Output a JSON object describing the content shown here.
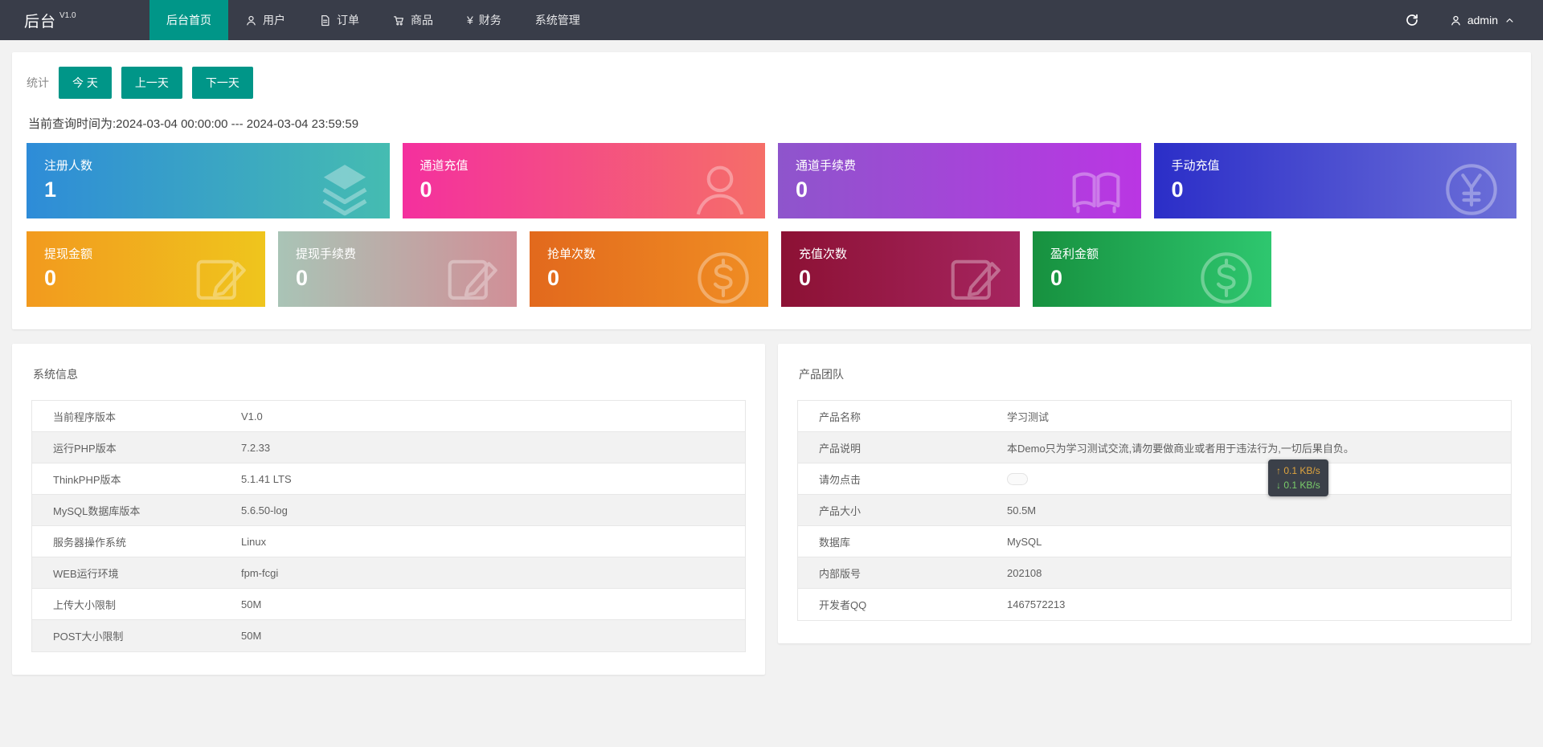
{
  "navbar": {
    "logo": "后台",
    "version": "V1.0",
    "items": [
      {
        "id": "home",
        "label": "后台首页",
        "icon": null,
        "active": true
      },
      {
        "id": "users",
        "label": "用户",
        "icon": "person-icon",
        "active": false
      },
      {
        "id": "orders",
        "label": "订单",
        "icon": "file-icon",
        "active": false
      },
      {
        "id": "goods",
        "label": "商品",
        "icon": "cart-icon",
        "active": false
      },
      {
        "id": "finance",
        "label": "财务",
        "icon": "yen-icon",
        "active": false
      },
      {
        "id": "system",
        "label": "系统管理",
        "icon": null,
        "active": false
      }
    ],
    "user": {
      "name": "admin"
    }
  },
  "stats": {
    "label": "统计",
    "buttons": [
      {
        "id": "today",
        "label": "今 天"
      },
      {
        "id": "prev-day",
        "label": "上一天"
      },
      {
        "id": "next-day",
        "label": "下一天"
      }
    ],
    "query_time": "当前查询时间为:2024-03-04 00:00:00 --- 2024-03-04 23:59:59",
    "cards_row1": [
      {
        "id": "registered-users",
        "label": "注册人数",
        "value": "1",
        "icon": "layers-icon",
        "gradient": [
          "#2E8CD8",
          "#45BCB1"
        ]
      },
      {
        "id": "channel-recharge",
        "label": "通道充值",
        "value": "0",
        "icon": "person-circle-icon",
        "gradient": [
          "#F4309E",
          "#F56E68"
        ]
      },
      {
        "id": "channel-fee",
        "label": "通道手续费",
        "value": "0",
        "icon": "book-icon",
        "gradient": [
          "#8E55CC",
          "#BA36E3"
        ]
      },
      {
        "id": "manual-recharge",
        "label": "手动充值",
        "value": "0",
        "icon": "yuan-circle-icon",
        "gradient": [
          "#2B2EC8",
          "#6C6FD8"
        ]
      }
    ],
    "cards_row2": [
      {
        "id": "withdraw-amount",
        "label": "提现金额",
        "value": "0",
        "icon": "edit-icon",
        "gradient": [
          "#F29A1E",
          "#EFC51D"
        ]
      },
      {
        "id": "withdraw-fee",
        "label": "提现手续费",
        "value": "0",
        "icon": "edit-icon",
        "gradient": [
          "#A9C4B6",
          "#D18F97"
        ]
      },
      {
        "id": "grab-count",
        "label": "抢单次数",
        "value": "0",
        "icon": "dollar-circle-icon",
        "gradient": [
          "#E2691D",
          "#F08E23"
        ]
      },
      {
        "id": "recharge-count",
        "label": "充值次数",
        "value": "0",
        "icon": "edit-icon",
        "gradient": [
          "#8C1134",
          "#A62560"
        ]
      },
      {
        "id": "profit-amount",
        "label": "盈利金额",
        "value": "0",
        "icon": "dollar-circle-icon",
        "gradient": [
          "#17913F",
          "#2EC76F"
        ]
      }
    ]
  },
  "system_info": {
    "title": "系统信息",
    "rows": [
      {
        "label": "当前程序版本",
        "value": "V1.0"
      },
      {
        "label": "运行PHP版本",
        "value": "7.2.33"
      },
      {
        "label": "ThinkPHP版本",
        "value": "5.1.41 LTS"
      },
      {
        "label": "MySQL数据库版本",
        "value": "5.6.50-log"
      },
      {
        "label": "服务器操作系统",
        "value": "Linux"
      },
      {
        "label": "WEB运行环境",
        "value": "fpm-fcgi"
      },
      {
        "label": "上传大小限制",
        "value": "50M"
      },
      {
        "label": "POST大小限制",
        "value": "50M"
      }
    ]
  },
  "product_team": {
    "title": "产品团队",
    "rows": [
      {
        "label": "产品名称",
        "value": "学习测试"
      },
      {
        "label": "产品说明",
        "value": "本Demo只为学习测试交流,请勿要做商业或者用于违法行为,一切后果自负。"
      },
      {
        "label": "请勿点击",
        "value": "",
        "type": "pill"
      },
      {
        "label": "产品大小",
        "value": "50.5M"
      },
      {
        "label": "数据库",
        "value": "MySQL"
      },
      {
        "label": "内部版号",
        "value": "202108"
      },
      {
        "label": "开发者QQ",
        "value": "1467572213"
      }
    ]
  },
  "net_speed": {
    "up_arrow": "↑",
    "up": "0.1 KB/s",
    "down_arrow": "↓",
    "down": "0.1 KB/s"
  },
  "colors": {
    "navbar_bg": "#393D49",
    "accent_teal": "#009688",
    "page_bg": "#f2f2f2"
  }
}
